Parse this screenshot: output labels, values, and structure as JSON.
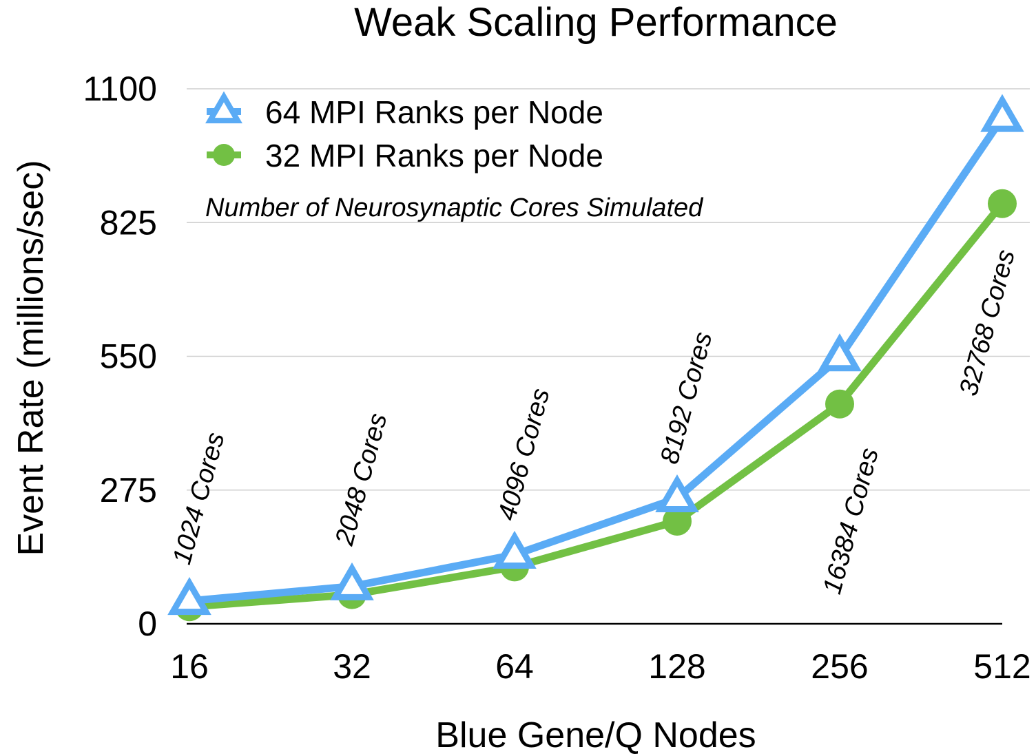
{
  "chart_data": {
    "type": "line",
    "title": "Weak Scaling Performance",
    "xlabel": "Blue Gene/Q Nodes",
    "ylabel": "Event Rate (millions/sec)",
    "categories": [
      "16",
      "32",
      "64",
      "128",
      "256",
      "512"
    ],
    "ylim": [
      0,
      1100
    ],
    "yticks": [
      "0",
      "275",
      "550",
      "825",
      "1100"
    ],
    "grid": true,
    "legend_position": "top-left",
    "series": [
      {
        "name": "64 MPI Ranks per Node",
        "marker": "triangle",
        "color": "#5aabf5",
        "values": [
          47,
          77,
          142,
          258,
          548,
          1040
        ]
      },
      {
        "name": "32 MPI Ranks per Node",
        "marker": "circle",
        "color": "#72c044",
        "values": [
          35,
          60,
          117,
          211,
          452,
          864
        ]
      }
    ],
    "annotation_title": "Number of Neurosynaptic Cores Simulated",
    "annotations": [
      "1024 Cores",
      "2048 Cores",
      "4096 Cores",
      "8192 Cores",
      "16384 Cores",
      "32768 Cores"
    ]
  }
}
